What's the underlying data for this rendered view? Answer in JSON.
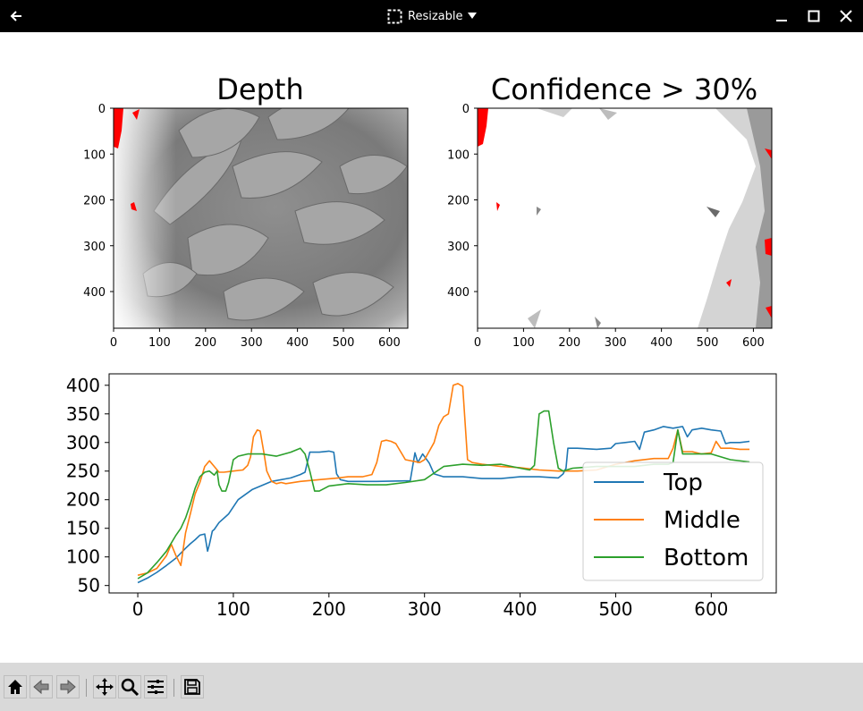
{
  "window": {
    "mode_label": "Resizable",
    "icons": {
      "back": "back-arrow-icon",
      "resize": "resize-dashed-square-icon",
      "dropdown": "caret-down-icon",
      "minimize": "minimize-icon",
      "maximize": "maximize-icon",
      "close": "close-icon"
    }
  },
  "toolbar": {
    "buttons": [
      "home-icon",
      "back-icon",
      "forward-icon",
      "pan-icon",
      "zoom-icon",
      "configure-subplots-icon",
      "save-icon"
    ]
  },
  "images": {
    "depth": {
      "title": "Depth",
      "x_ticks": [
        "0",
        "100",
        "200",
        "300",
        "400",
        "500",
        "600"
      ],
      "y_ticks": [
        "0",
        "100",
        "200",
        "300",
        "400"
      ],
      "colormap": "grayscale",
      "invalid_color": "#ff0000"
    },
    "confidence": {
      "title": "Confidence > 30%",
      "x_ticks": [
        "0",
        "100",
        "200",
        "300",
        "400",
        "500",
        "600"
      ],
      "y_ticks": [
        "0",
        "100",
        "200",
        "300",
        "400"
      ],
      "colormap": "grayscale",
      "invalid_color": "#ff0000"
    }
  },
  "chart_data": {
    "type": "line",
    "title": "",
    "xlabel": "",
    "ylabel": "",
    "xlim": [
      -30,
      668
    ],
    "ylim": [
      37,
      420
    ],
    "x_ticks": [
      "0",
      "100",
      "200",
      "300",
      "400",
      "500",
      "600"
    ],
    "y_ticks": [
      "50",
      "100",
      "150",
      "200",
      "250",
      "300",
      "350",
      "400"
    ],
    "legend_position": "lower-right",
    "grid": false,
    "series": [
      {
        "name": "Top",
        "color": "#1f77b4",
        "x": [
          0,
          10,
          20,
          30,
          40,
          50,
          55,
          60,
          65,
          70,
          73,
          75,
          78,
          80,
          85,
          95,
          105,
          120,
          140,
          160,
          170,
          175,
          180,
          190,
          200,
          205,
          208,
          212,
          220,
          250,
          285,
          290,
          293,
          298,
          305,
          310,
          320,
          340,
          360,
          380,
          400,
          420,
          440,
          445,
          448,
          450,
          460,
          480,
          495,
          500,
          510,
          520,
          525,
          530,
          540,
          550,
          560,
          570,
          575,
          580,
          590,
          600,
          610,
          615,
          620,
          630,
          640
        ],
        "y": [
          55,
          63,
          73,
          85,
          98,
          115,
          123,
          130,
          138,
          140,
          110,
          122,
          145,
          148,
          160,
          175,
          200,
          218,
          232,
          238,
          244,
          248,
          283,
          283,
          285,
          283,
          245,
          235,
          232,
          232,
          233,
          282,
          265,
          280,
          264,
          245,
          240,
          240,
          237,
          237,
          240,
          240,
          238,
          245,
          255,
          290,
          290,
          288,
          290,
          298,
          300,
          302,
          288,
          318,
          322,
          328,
          325,
          328,
          310,
          322,
          325,
          322,
          320,
          298,
          300,
          300,
          302
        ]
      },
      {
        "name": "Middle",
        "color": "#ff7f0e",
        "x": [
          0,
          10,
          20,
          30,
          35,
          40,
          45,
          50,
          55,
          60,
          65,
          70,
          75,
          80,
          85,
          90,
          100,
          110,
          115,
          118,
          121,
          125,
          128,
          132,
          135,
          140,
          145,
          150,
          155,
          170,
          190,
          210,
          220,
          235,
          245,
          250,
          255,
          260,
          265,
          270,
          280,
          295,
          300,
          310,
          315,
          320,
          325,
          330,
          335,
          340,
          345,
          350,
          360,
          380,
          400,
          420,
          440,
          460,
          480,
          500,
          520,
          540,
          555,
          560,
          565,
          570,
          580,
          590,
          600,
          605,
          610,
          620,
          630,
          640
        ],
        "y": [
          68,
          72,
          80,
          102,
          122,
          102,
          85,
          142,
          175,
          210,
          230,
          258,
          268,
          258,
          248,
          248,
          250,
          252,
          260,
          275,
          310,
          322,
          320,
          282,
          250,
          232,
          228,
          230,
          228,
          232,
          235,
          238,
          240,
          240,
          244,
          265,
          302,
          304,
          302,
          298,
          270,
          265,
          270,
          300,
          330,
          345,
          350,
          400,
          403,
          398,
          270,
          265,
          262,
          258,
          256,
          252,
          250,
          250,
          252,
          262,
          268,
          272,
          272,
          290,
          322,
          284,
          284,
          280,
          282,
          302,
          290,
          290,
          288,
          288
        ]
      },
      {
        "name": "Bottom",
        "color": "#2ca02c",
        "x": [
          0,
          10,
          20,
          30,
          40,
          45,
          50,
          55,
          60,
          65,
          70,
          75,
          80,
          83,
          85,
          88,
          92,
          95,
          100,
          105,
          115,
          130,
          145,
          160,
          170,
          175,
          180,
          185,
          190,
          200,
          220,
          240,
          260,
          280,
          300,
          320,
          340,
          360,
          380,
          400,
          410,
          415,
          420,
          425,
          430,
          435,
          440,
          445,
          455,
          480,
          500,
          520,
          540,
          555,
          560,
          565,
          570,
          580,
          600,
          620,
          640
        ],
        "y": [
          62,
          72,
          90,
          110,
          138,
          150,
          168,
          192,
          220,
          240,
          248,
          250,
          243,
          250,
          226,
          215,
          215,
          230,
          270,
          276,
          280,
          280,
          276,
          283,
          290,
          280,
          250,
          215,
          215,
          224,
          228,
          226,
          226,
          230,
          235,
          258,
          262,
          260,
          262,
          255,
          252,
          260,
          350,
          355,
          355,
          300,
          255,
          250,
          255,
          258,
          258,
          258,
          262,
          262,
          265,
          322,
          280,
          280,
          280,
          270,
          266
        ]
      }
    ]
  }
}
